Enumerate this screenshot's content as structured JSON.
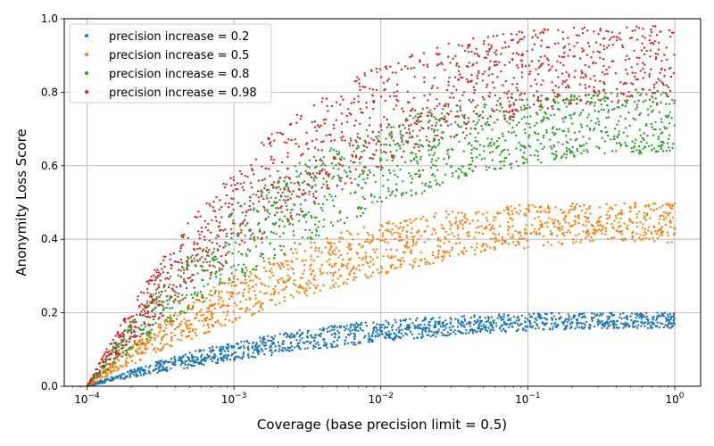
{
  "chart_data": {
    "type": "scatter",
    "title": "",
    "xlabel": "Coverage (base precision limit = 0.5)",
    "ylabel": "Anonymity Loss Score",
    "xscale": "log",
    "xlim": [
      7e-05,
      1.5
    ],
    "ylim": [
      0.0,
      1.0
    ],
    "grid": true,
    "legend_position": "top-left",
    "x_ticks": [
      {
        "value": 0.0001,
        "base": "10",
        "exp": "−4"
      },
      {
        "value": 0.001,
        "base": "10",
        "exp": "−3"
      },
      {
        "value": 0.01,
        "base": "10",
        "exp": "−2"
      },
      {
        "value": 0.1,
        "base": "10",
        "exp": "−1"
      },
      {
        "value": 1,
        "base": "10",
        "exp": "0"
      }
    ],
    "y_ticks": [
      {
        "value": 0.0,
        "label": "0.0"
      },
      {
        "value": 0.2,
        "label": "0.2"
      },
      {
        "value": 0.4,
        "label": "0.4"
      },
      {
        "value": 0.6,
        "label": "0.6"
      },
      {
        "value": 0.8,
        "label": "0.8"
      },
      {
        "value": 1.0,
        "label": "1.0"
      }
    ],
    "series": [
      {
        "name": "precision increase = 0.2",
        "color": "#1f77b4",
        "max_score": 0.2,
        "x_range": [
          0.0001,
          1
        ],
        "points_per_series": 1400
      },
      {
        "name": "precision increase = 0.5",
        "color": "#ff7f0e",
        "max_score": 0.5,
        "x_range": [
          0.0001,
          1
        ],
        "points_per_series": 1400
      },
      {
        "name": "precision increase = 0.8",
        "color": "#2ca02c",
        "max_score": 0.8,
        "x_range": [
          0.0001,
          1
        ],
        "points_per_series": 1400
      },
      {
        "name": "precision increase = 0.98",
        "color": "#d62728",
        "max_score": 0.98,
        "x_range": [
          0.0001,
          1
        ],
        "points_per_series": 1400
      }
    ]
  }
}
